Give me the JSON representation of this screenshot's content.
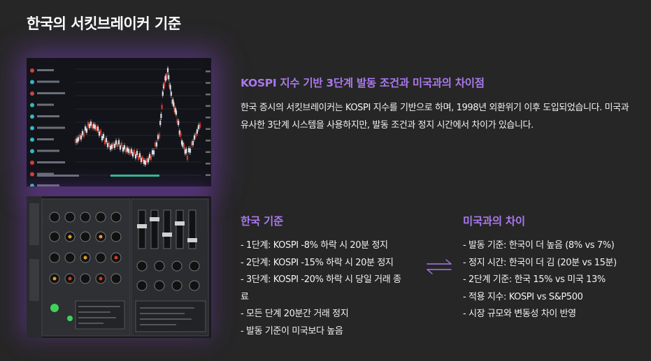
{
  "title": "한국의 서킷브레이커 기준",
  "intro": {
    "heading": "KOSPI 지수 기반 3단계 발동 조건과 미국과의 차이점",
    "body": "한국 증시의 서킷브레이커는 KOSPI 지수를 기반으로 하며, 1998년 외환위기 이후 도입되었습니다. 미국과 유사한 3단계 시스템을 사용하지만, 발동 조건과 정지 시간에서 차이가 있습니다."
  },
  "korea": {
    "heading": "한국 기준",
    "items": [
      "- 1단계: KOSPI -8% 하락 시 20분 정지",
      "- 2단계: KOSPI -15% 하락 시 20분 정지",
      "- 3단계: KOSPI -20% 하락 시 당일 거래 종료",
      "- 모든 단계 20분간 거래 정지",
      "- 발동 기준이 미국보다 높음"
    ]
  },
  "diff": {
    "heading": "미국과의 차이",
    "items": [
      "- 발동 기준: 한국이 더 높음 (8% vs 7%)",
      "- 정지 시간: 한국이 더 김 (20분 vs 15분)",
      "- 2단계 기준: 한국 15% vs 미국 13%",
      "- 적용 지수: KOSPI vs S&P500",
      "- 시장 규모와 변동성 차이 반영"
    ]
  },
  "icons": {
    "swap": "swap-arrows-icon"
  },
  "colors": {
    "background": "#262626",
    "accent": "#a979ec",
    "text": "#f2f2f2"
  }
}
